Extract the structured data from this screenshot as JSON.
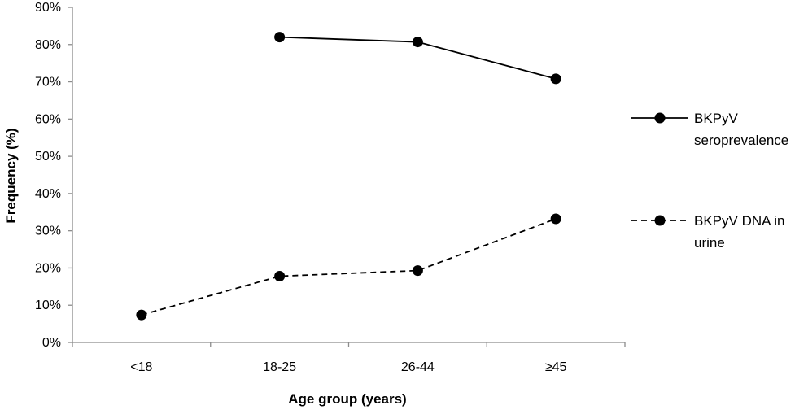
{
  "chart_data": {
    "type": "line",
    "categories": [
      "<18",
      "18-25",
      "26-44",
      "≥45"
    ],
    "series": [
      {
        "name": "BKPyV seroprevalence",
        "name_lines": [
          "BKPyV",
          "seroprevalence"
        ],
        "values": [
          null,
          82,
          80.7,
          70.8
        ],
        "line_style": "solid",
        "color": "#000000"
      },
      {
        "name": "BKPyV DNA in urine",
        "name_lines": [
          "BKPyV DNA in",
          "urine"
        ],
        "values": [
          7.4,
          17.8,
          19.3,
          33.2
        ],
        "line_style": "dashed",
        "color": "#000000"
      }
    ],
    "xlabel": "Age group (years)",
    "ylabel": "Frequency (%)",
    "ylim": [
      0,
      90
    ],
    "yticks": [
      0,
      10,
      20,
      30,
      40,
      50,
      60,
      70,
      80,
      90
    ],
    "ytick_labels": [
      "0%",
      "10%",
      "20%",
      "30%",
      "40%",
      "50%",
      "60%",
      "70%",
      "80%",
      "90%"
    ],
    "grid": false,
    "legend_position": "right"
  }
}
